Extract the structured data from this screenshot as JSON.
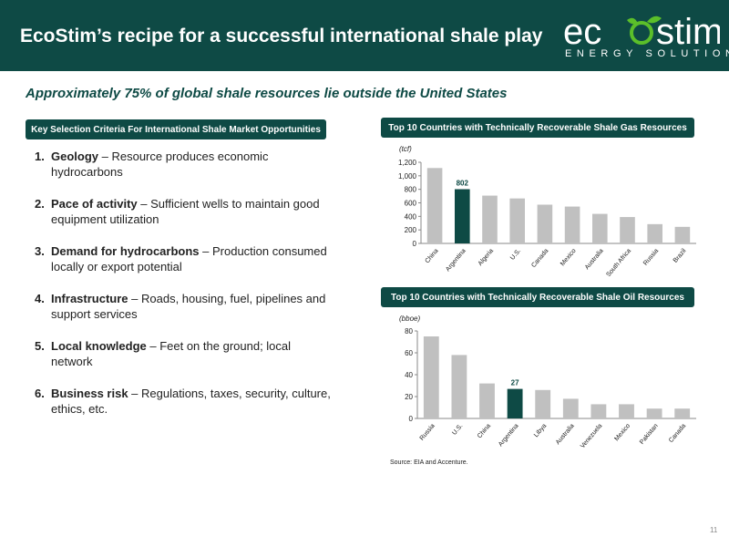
{
  "header": {
    "title": "EcoStim’s recipe for a successful international shale play",
    "logo_left": "ec",
    "logo_right": "stim",
    "logo_sub": "ENERGY SOLUTIONS"
  },
  "subtitle": "Approximately 75% of global shale resources lie outside the United States",
  "criteria": {
    "heading": "Key Selection Criteria For International Shale Market Opportunities",
    "items": [
      {
        "num": "1.",
        "head": "Geology",
        "desc": " – Resource produces economic hydrocarbons"
      },
      {
        "num": "2.",
        "head": "Pace of activity",
        "desc": " – Sufficient wells to maintain good equipment utilization"
      },
      {
        "num": "3.",
        "head": "Demand for hydrocarbons",
        "desc": " – Production consumed locally or export potential"
      },
      {
        "num": "4.",
        "head": "Infrastructure",
        "desc": " – Roads, housing, fuel, pipelines and support services"
      },
      {
        "num": "5.",
        "head": "Local knowledge",
        "desc": " – Feet on the ground; local network"
      },
      {
        "num": "6.",
        "head": "Business risk",
        "desc": " – Regulations, taxes, security, culture, ethics, etc."
      }
    ]
  },
  "chart_data": [
    {
      "type": "bar",
      "title": "Top 10 Countries with Technically Recoverable Shale Gas Resources",
      "ylabel": "(tcf)",
      "categories": [
        "China",
        "Argentina",
        "Algeria",
        "U.S.",
        "Canada",
        "Mexico",
        "Australia",
        "South Africa",
        "Russia",
        "Brazil"
      ],
      "values": [
        1115,
        802,
        707,
        665,
        573,
        545,
        437,
        390,
        285,
        245
      ],
      "highlight_index": 1,
      "highlight_label": "802",
      "ylim": [
        0,
        1200
      ],
      "yticks": [
        0,
        200,
        400,
        600,
        800,
        1000,
        1200
      ],
      "ytick_labels": [
        "0",
        "200",
        "400",
        "600",
        "800",
        "1,000",
        "1,200"
      ],
      "bar_color": "#c0c0c0",
      "highlight_color": "#0e4a45",
      "grid": false
    },
    {
      "type": "bar",
      "title": "Top 10 Countries with Technically Recoverable Shale Oil Resources",
      "ylabel": "(bboe)",
      "categories": [
        "Russia",
        "U.S.",
        "China",
        "Argentina",
        "Libya",
        "Australia",
        "Venezuela",
        "Mexico",
        "Pakistan",
        "Canada"
      ],
      "values": [
        75,
        58,
        32,
        27,
        26,
        18,
        13,
        13,
        9,
        9
      ],
      "highlight_index": 3,
      "highlight_label": "27",
      "ylim": [
        0,
        80
      ],
      "yticks": [
        0,
        20,
        40,
        60,
        80
      ],
      "ytick_labels": [
        "0",
        "20",
        "40",
        "60",
        "80"
      ],
      "bar_color": "#c0c0c0",
      "highlight_color": "#0e4a45",
      "grid": false
    }
  ],
  "source": "Source: EIA and Accenture.",
  "page_number": "11",
  "colors": {
    "primary": "#0e4a45",
    "accent_green": "#5bbf2a"
  }
}
